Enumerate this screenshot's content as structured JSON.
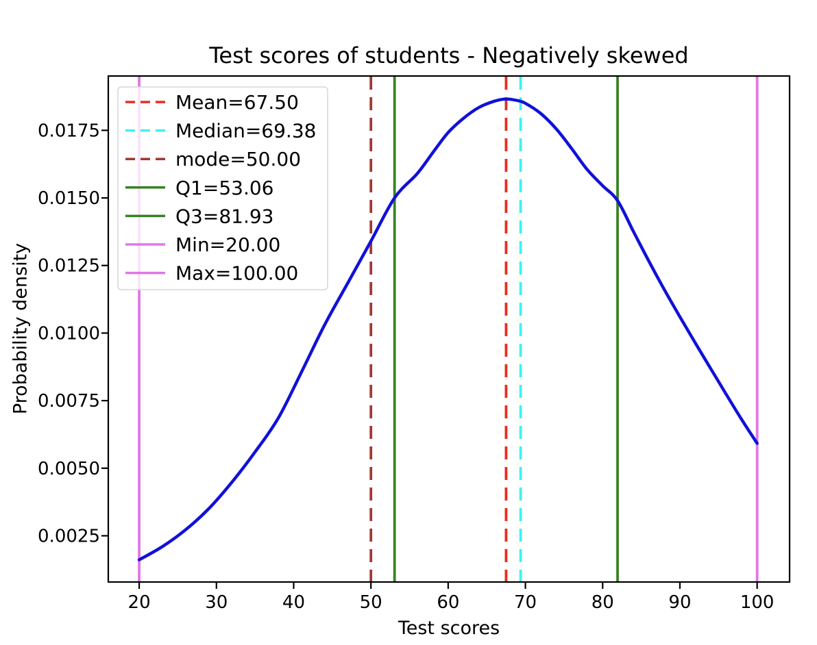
{
  "figure": {
    "title": "Test scores of students - Negatively skewed",
    "xlabel": "Test scores",
    "ylabel": "Probability density"
  },
  "chart_data": {
    "type": "line",
    "title": "Test scores of students - Negatively skewed",
    "xlabel": "Test scores",
    "ylabel": "Probability density",
    "xlim": [
      16.0,
      104.2
    ],
    "ylim": [
      0.00079,
      0.01951
    ],
    "x_ticks": [
      20,
      30,
      40,
      50,
      60,
      70,
      80,
      90,
      100
    ],
    "y_ticks": [
      0.0025,
      0.005,
      0.0075,
      0.01,
      0.0125,
      0.015,
      0.0175
    ],
    "grid": false,
    "legend_position": "upper-left",
    "series": [
      {
        "name": "probability-density-curve",
        "color": "#1111d8",
        "points": [
          [
            20,
            0.00161
          ],
          [
            23,
            0.0021
          ],
          [
            26,
            0.00272
          ],
          [
            29,
            0.0035
          ],
          [
            32,
            0.00448
          ],
          [
            35,
            0.0056
          ],
          [
            38,
            0.00685
          ],
          [
            41,
            0.00855
          ],
          [
            44,
            0.0103
          ],
          [
            47,
            0.01185
          ],
          [
            50,
            0.0134
          ],
          [
            53.06,
            0.015
          ],
          [
            56,
            0.0159
          ],
          [
            58,
            0.01667
          ],
          [
            60,
            0.01742
          ],
          [
            62,
            0.01795
          ],
          [
            64,
            0.01835
          ],
          [
            66,
            0.01858
          ],
          [
            67.5,
            0.01866
          ],
          [
            69,
            0.0186
          ],
          [
            70,
            0.0185
          ],
          [
            72,
            0.01812
          ],
          [
            74,
            0.01755
          ],
          [
            76,
            0.01682
          ],
          [
            78,
            0.01605
          ],
          [
            80,
            0.01545
          ],
          [
            81.93,
            0.0149
          ],
          [
            84,
            0.01375
          ],
          [
            86,
            0.01265
          ],
          [
            88,
            0.0116
          ],
          [
            90,
            0.0106
          ],
          [
            92,
            0.00963
          ],
          [
            94,
            0.00868
          ],
          [
            96,
            0.00773
          ],
          [
            98,
            0.0068
          ],
          [
            100,
            0.00592
          ]
        ]
      }
    ],
    "stat_lines": [
      {
        "label": "Mean=67.50",
        "value": 67.5,
        "color": "#e92d1e",
        "style": "dashed"
      },
      {
        "label": "Median=69.38",
        "value": 69.38,
        "color": "#3df2f5",
        "style": "dashed"
      },
      {
        "label": "mode=50.00",
        "value": 50.0,
        "color": "#a13a30",
        "style": "dashed"
      },
      {
        "label": "Q1=53.06",
        "value": 53.06,
        "color": "#378223",
        "style": "solid"
      },
      {
        "label": "Q3=81.93",
        "value": 81.93,
        "color": "#378223",
        "style": "solid"
      },
      {
        "label": "Min=20.00",
        "value": 20.0,
        "color": "#e076e8",
        "style": "solid"
      },
      {
        "label": "Max=100.00",
        "value": 100.0,
        "color": "#e076e8",
        "style": "solid"
      }
    ],
    "colors": {
      "curve": "#1111d8",
      "axes": "#000000",
      "legend_border": "#d5d5d5",
      "legend_background": "#ffffff"
    }
  }
}
